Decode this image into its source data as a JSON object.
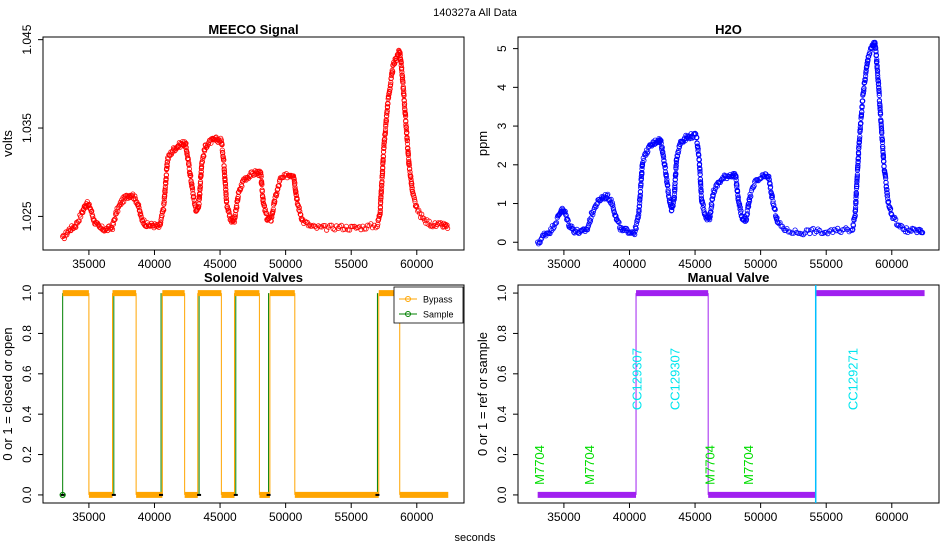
{
  "title": "140327a   All Data",
  "xlabel": "seconds",
  "colors": {
    "meeco": "#ff0000",
    "h2o": "#0000ff",
    "bypass": "#ffa500",
    "sample": "#008000",
    "manual": "#a020f0",
    "cc_label": "#00e5ee",
    "m_label": "#00dd00",
    "cc_line": "#00bfff"
  },
  "chart_data": [
    {
      "id": "meeco",
      "type": "scatter",
      "title": "MEECO Signal",
      "ylabel": "volts",
      "xlim": [
        31500,
        63600
      ],
      "ylim": [
        1.0212,
        1.0453
      ],
      "xticks": [
        35000,
        40000,
        45000,
        50000,
        55000,
        60000
      ],
      "xtick_labels": [
        "35000",
        "40000",
        "45000",
        "50000",
        "55000",
        "60000"
      ],
      "yticks": [
        1.025,
        1.035,
        1.045
      ],
      "ytick_labels": [
        "1.025",
        "1.035",
        "1.045"
      ],
      "series": [
        {
          "name": "MEECO",
          "points": [
            [
              33000,
              1.0225
            ],
            [
              33500,
              1.0235
            ],
            [
              34000,
              1.024
            ],
            [
              34500,
              1.0255
            ],
            [
              34800,
              1.0265
            ],
            [
              35100,
              1.026
            ],
            [
              35400,
              1.0245
            ],
            [
              35800,
              1.0237
            ],
            [
              36300,
              1.0235
            ],
            [
              36800,
              1.0238
            ],
            [
              37100,
              1.0255
            ],
            [
              37500,
              1.0267
            ],
            [
              37900,
              1.0273
            ],
            [
              38300,
              1.0275
            ],
            [
              38700,
              1.0266
            ],
            [
              39000,
              1.0248
            ],
            [
              39400,
              1.024
            ],
            [
              39900,
              1.024
            ],
            [
              40400,
              1.0238
            ],
            [
              40700,
              1.026
            ],
            [
              41000,
              1.0315
            ],
            [
              41400,
              1.0325
            ],
            [
              41800,
              1.033
            ],
            [
              42200,
              1.0333
            ],
            [
              42400,
              1.033
            ],
            [
              42600,
              1.031
            ],
            [
              42800,
              1.029
            ],
            [
              43000,
              1.027
            ],
            [
              43200,
              1.0255
            ],
            [
              43400,
              1.0265
            ],
            [
              43600,
              1.031
            ],
            [
              43900,
              1.033
            ],
            [
              44300,
              1.0335
            ],
            [
              44700,
              1.0337
            ],
            [
              45100,
              1.0336
            ],
            [
              45300,
              1.031
            ],
            [
              45500,
              1.0265
            ],
            [
              45800,
              1.0247
            ],
            [
              46100,
              1.0245
            ],
            [
              46400,
              1.0275
            ],
            [
              46800,
              1.0292
            ],
            [
              47300,
              1.0297
            ],
            [
              47800,
              1.03
            ],
            [
              48100,
              1.0298
            ],
            [
              48300,
              1.0265
            ],
            [
              48600,
              1.0247
            ],
            [
              48900,
              1.0247
            ],
            [
              49200,
              1.027
            ],
            [
              49600,
              1.0292
            ],
            [
              50200,
              1.0297
            ],
            [
              50600,
              1.0298
            ],
            [
              50900,
              1.0265
            ],
            [
              51300,
              1.0245
            ],
            [
              52000,
              1.0238
            ],
            [
              53000,
              1.0237
            ],
            [
              54000,
              1.0238
            ],
            [
              55000,
              1.0237
            ],
            [
              56000,
              1.0238
            ],
            [
              57000,
              1.024
            ],
            [
              57200,
              1.0255
            ],
            [
              57500,
              1.033
            ],
            [
              57800,
              1.038
            ],
            [
              58200,
              1.042
            ],
            [
              58500,
              1.0432
            ],
            [
              58700,
              1.0437
            ],
            [
              58800,
              1.0425
            ],
            [
              59000,
              1.039
            ],
            [
              59200,
              1.035
            ],
            [
              59400,
              1.031
            ],
            [
              59700,
              1.0275
            ],
            [
              60000,
              1.0258
            ],
            [
              60600,
              1.0245
            ],
            [
              61300,
              1.024
            ],
            [
              62000,
              1.024
            ],
            [
              62400,
              1.0238
            ]
          ]
        }
      ]
    },
    {
      "id": "h2o",
      "type": "scatter",
      "title": "H2O",
      "ylabel": "ppm",
      "xlim": [
        31500,
        63600
      ],
      "ylim": [
        -0.2,
        5.3
      ],
      "xticks": [
        35000,
        40000,
        45000,
        50000,
        55000,
        60000
      ],
      "xtick_labels": [
        "35000",
        "40000",
        "45000",
        "50000",
        "55000",
        "60000"
      ],
      "yticks": [
        0,
        1,
        2,
        3,
        4,
        5
      ],
      "ytick_labels": [
        "0",
        "1",
        "2",
        "3",
        "4",
        "5"
      ],
      "series": [
        {
          "name": "H2O",
          "points": [
            [
              33000,
              -0.05
            ],
            [
              33500,
              0.2
            ],
            [
              34000,
              0.3
            ],
            [
              34500,
              0.6
            ],
            [
              34800,
              0.85
            ],
            [
              35100,
              0.75
            ],
            [
              35400,
              0.45
            ],
            [
              35800,
              0.3
            ],
            [
              36300,
              0.25
            ],
            [
              36800,
              0.35
            ],
            [
              37100,
              0.7
            ],
            [
              37500,
              1.0
            ],
            [
              37900,
              1.15
            ],
            [
              38300,
              1.2
            ],
            [
              38700,
              1.0
            ],
            [
              39000,
              0.6
            ],
            [
              39400,
              0.3
            ],
            [
              39900,
              0.3
            ],
            [
              40400,
              0.25
            ],
            [
              40700,
              0.7
            ],
            [
              41000,
              2.1
            ],
            [
              41400,
              2.4
            ],
            [
              41800,
              2.55
            ],
            [
              42200,
              2.65
            ],
            [
              42400,
              2.6
            ],
            [
              42600,
              2.2
            ],
            [
              42800,
              1.7
            ],
            [
              43000,
              1.2
            ],
            [
              43200,
              0.8
            ],
            [
              43400,
              1.1
            ],
            [
              43600,
              2.2
            ],
            [
              43900,
              2.6
            ],
            [
              44300,
              2.7
            ],
            [
              44700,
              2.75
            ],
            [
              45100,
              2.75
            ],
            [
              45300,
              2.2
            ],
            [
              45500,
              1.1
            ],
            [
              45800,
              0.65
            ],
            [
              46100,
              0.6
            ],
            [
              46400,
              1.3
            ],
            [
              46800,
              1.55
            ],
            [
              47300,
              1.7
            ],
            [
              47800,
              1.75
            ],
            [
              48100,
              1.7
            ],
            [
              48300,
              1.1
            ],
            [
              48600,
              0.6
            ],
            [
              48900,
              0.6
            ],
            [
              49200,
              1.2
            ],
            [
              49600,
              1.55
            ],
            [
              50200,
              1.7
            ],
            [
              50600,
              1.7
            ],
            [
              50900,
              1.1
            ],
            [
              51300,
              0.5
            ],
            [
              52000,
              0.3
            ],
            [
              53000,
              0.25
            ],
            [
              54000,
              0.3
            ],
            [
              55000,
              0.25
            ],
            [
              56000,
              0.3
            ],
            [
              57000,
              0.35
            ],
            [
              57200,
              0.7
            ],
            [
              57500,
              2.5
            ],
            [
              57800,
              3.8
            ],
            [
              58200,
              4.8
            ],
            [
              58500,
              5.05
            ],
            [
              58700,
              5.15
            ],
            [
              58800,
              4.9
            ],
            [
              59000,
              4.0
            ],
            [
              59200,
              3.0
            ],
            [
              59400,
              2.0
            ],
            [
              59700,
              1.1
            ],
            [
              60000,
              0.7
            ],
            [
              60600,
              0.4
            ],
            [
              61300,
              0.3
            ],
            [
              62000,
              0.3
            ],
            [
              62400,
              0.25
            ]
          ]
        }
      ]
    },
    {
      "id": "solenoid",
      "type": "step",
      "title": "Solenoid Valves",
      "ylabel": "0 or 1 = closed or open",
      "xlim": [
        31500,
        63600
      ],
      "ylim": [
        -0.04,
        1.04
      ],
      "xticks": [
        35000,
        40000,
        45000,
        50000,
        55000,
        60000
      ],
      "xtick_labels": [
        "35000",
        "40000",
        "45000",
        "50000",
        "55000",
        "60000"
      ],
      "yticks": [
        0.0,
        0.2,
        0.4,
        0.6,
        0.8,
        1.0
      ],
      "ytick_labels": [
        "0.0",
        "0.2",
        "0.4",
        "0.6",
        "0.8",
        "1.0"
      ],
      "legend": {
        "position": "top-right",
        "entries": [
          "Bypass",
          "Sample"
        ]
      },
      "series": [
        {
          "name": "Bypass",
          "segments": [
            [
              [
                33000,
                1
              ],
              [
                35000,
                1
              ]
            ],
            [
              [
                35000,
                0
              ],
              [
                36800,
                0
              ]
            ],
            [
              [
                36800,
                1
              ],
              [
                38600,
                1
              ]
            ],
            [
              [
                38600,
                0
              ],
              [
                40600,
                0
              ]
            ],
            [
              [
                40600,
                1
              ],
              [
                42300,
                1
              ]
            ],
            [
              [
                42300,
                0
              ],
              [
                43300,
                0
              ]
            ],
            [
              [
                43300,
                1
              ],
              [
                45100,
                1
              ]
            ],
            [
              [
                45100,
                0
              ],
              [
                46100,
                0
              ]
            ],
            [
              [
                46100,
                1
              ],
              [
                48000,
                1
              ]
            ],
            [
              [
                48000,
                0
              ],
              [
                48800,
                0
              ]
            ],
            [
              [
                48800,
                1
              ],
              [
                50700,
                1
              ]
            ],
            [
              [
                50700,
                0
              ],
              [
                57100,
                0
              ]
            ],
            [
              [
                57100,
                1
              ],
              [
                58700,
                1
              ]
            ],
            [
              [
                58700,
                0
              ],
              [
                62400,
                0
              ]
            ]
          ],
          "transitions": [
            35000,
            36800,
            38600,
            40600,
            42300,
            43300,
            45100,
            46100,
            48000,
            48800,
            50700,
            57100,
            58700
          ]
        },
        {
          "name": "Sample",
          "transitions": [
            33000,
            36900,
            40500,
            43400,
            46200,
            48700,
            57000
          ],
          "start_marker": [
            33000,
            0
          ]
        }
      ]
    },
    {
      "id": "manual",
      "type": "step",
      "title": "Manual Valve",
      "ylabel": "0 or 1 = ref or sample",
      "xlim": [
        31500,
        63600
      ],
      "ylim": [
        -0.04,
        1.04
      ],
      "xticks": [
        35000,
        40000,
        45000,
        50000,
        55000,
        60000
      ],
      "xtick_labels": [
        "35000",
        "40000",
        "45000",
        "50000",
        "55000",
        "60000"
      ],
      "yticks": [
        0.0,
        0.2,
        0.4,
        0.6,
        0.8,
        1.0
      ],
      "ytick_labels": [
        "0.0",
        "0.2",
        "0.4",
        "0.6",
        "0.8",
        "1.0"
      ],
      "series": [
        {
          "name": "Manual",
          "segments": [
            [
              [
                33000,
                0
              ],
              [
                40500,
                0
              ]
            ],
            [
              [
                40500,
                1
              ],
              [
                46000,
                1
              ]
            ],
            [
              [
                46000,
                0
              ],
              [
                54200,
                0
              ]
            ],
            [
              [
                54200,
                1
              ],
              [
                62500,
                1
              ]
            ]
          ],
          "transitions": [
            40500,
            46000,
            54200
          ]
        }
      ],
      "vline": 54200,
      "annotations": [
        {
          "text": "M7704",
          "x": 33500,
          "y": 0.05,
          "color": "m_label"
        },
        {
          "text": "M7704",
          "x": 37300,
          "y": 0.05,
          "color": "m_label"
        },
        {
          "text": "CC129307",
          "x": 40900,
          "y": 0.42,
          "color": "cc_label"
        },
        {
          "text": "CC129307",
          "x": 43800,
          "y": 0.42,
          "color": "cc_label"
        },
        {
          "text": "M7704",
          "x": 46500,
          "y": 0.05,
          "color": "m_label"
        },
        {
          "text": "M7704",
          "x": 49400,
          "y": 0.05,
          "color": "m_label"
        },
        {
          "text": "CC129271",
          "x": 57400,
          "y": 0.42,
          "color": "cc_label"
        }
      ]
    }
  ]
}
